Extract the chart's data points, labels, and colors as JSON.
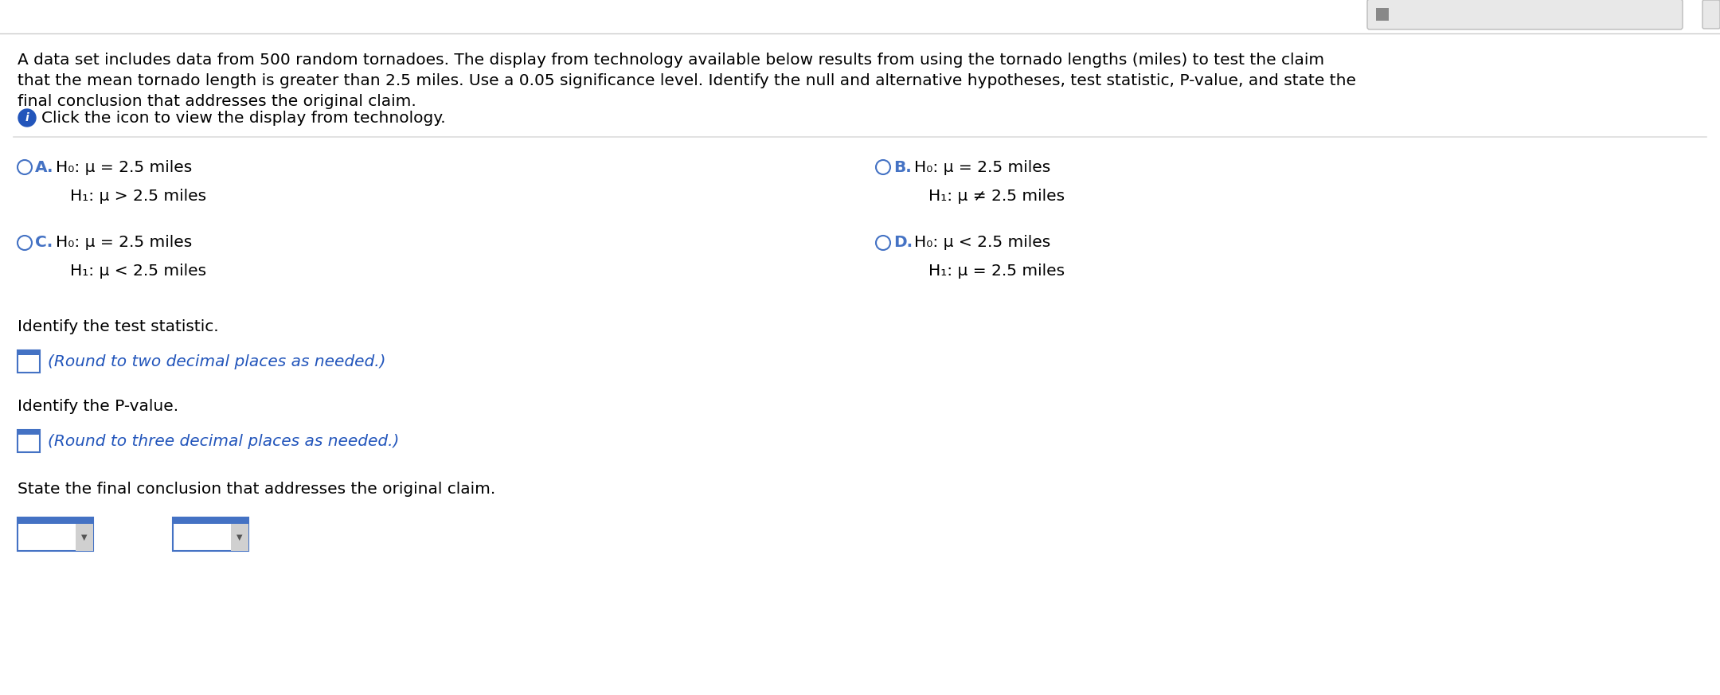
{
  "bg_color": "#ffffff",
  "text_color": "#000000",
  "blue_color": "#4472C4",
  "light_blue_text": "#2255BB",
  "info_blue": "#2255BB",
  "para_line1": "A data set includes data from 500 random tornadoes. The display from technology available below results from using the tornado lengths (miles) to test the claim",
  "para_line2": "that the mean tornado length is greater than 2.5 miles. Use a 0.05 significance level. Identify the null and alternative hypotheses, test statistic, P-value, and state the",
  "para_line3": "final conclusion that addresses the original claim.",
  "click_text": "Click the icon to view the display from technology.",
  "option_A_label": "A.",
  "option_A_h0": "H₀: μ = 2.5 miles",
  "option_A_h1": "H₁: μ > 2.5 miles",
  "option_B_label": "B.",
  "option_B_h0": "H₀: μ = 2.5 miles",
  "option_B_h1": "H₁: μ ≠ 2.5 miles",
  "option_C_label": "C.",
  "option_C_h0": "H₀: μ = 2.5 miles",
  "option_C_h1": "H₁: μ < 2.5 miles",
  "option_D_label": "D.",
  "option_D_h0": "H₀: μ < 2.5 miles",
  "option_D_h1": "H₁: μ = 2.5 miles",
  "identify_stat": "Identify the test statistic.",
  "round_two": "(Round to two decimal places as needed.)",
  "identify_pvalue": "Identify the P-value.",
  "round_three": "(Round to three decimal places as needed.)",
  "final_conclusion": "State the final conclusion that addresses the original claim.",
  "separator_color": "#dddddd",
  "box_border_color": "#4472C4",
  "box_fill_color": "#ffffff",
  "toolbar_color": "#e8e8e8",
  "toolbar_border": "#bbbbbb"
}
